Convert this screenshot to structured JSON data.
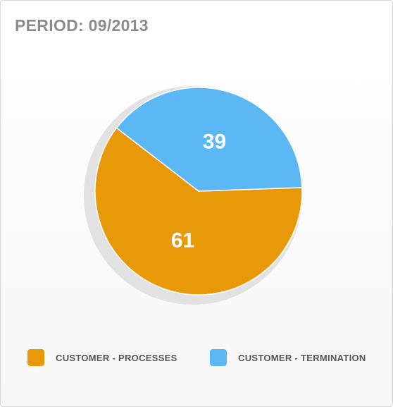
{
  "title": "PERIOD: 09/2013",
  "chart_data": {
    "type": "pie",
    "categories": [
      "CUSTOMER - PROCESSES",
      "CUSTOMER - TERMINATION"
    ],
    "values": [
      61,
      39
    ],
    "data_labels": [
      "61",
      "39"
    ],
    "colors": [
      "#E8990A",
      "#5BB8F5"
    ],
    "legend_position": "bottom"
  }
}
